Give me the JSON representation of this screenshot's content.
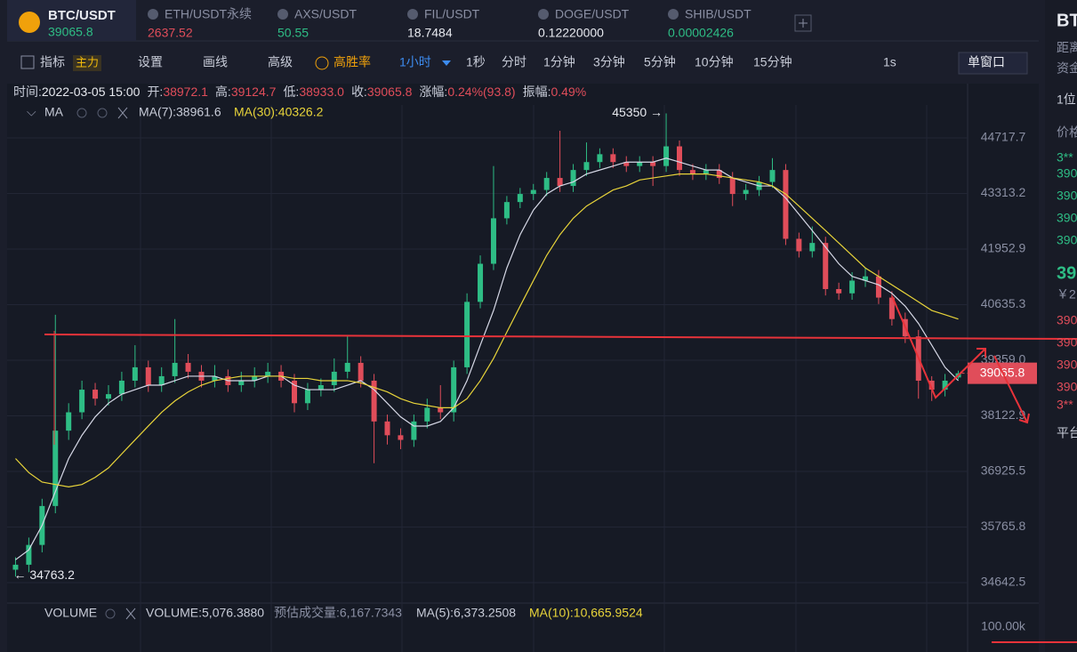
{
  "tabs": [
    {
      "name": "BTC/USDT",
      "price": "39065.8"
    },
    {
      "name": "ETH/USDT永续",
      "price": "2637.52"
    },
    {
      "name": "AXS/USDT",
      "price": "50.55"
    },
    {
      "name": "FIL/USDT",
      "price": "18.7484"
    },
    {
      "name": "DOGE/USDT",
      "price": "0.12220000"
    },
    {
      "name": "SHIB/USDT",
      "price": "0.00002426"
    }
  ],
  "toolbar": {
    "indicator": "指标",
    "main": "主力",
    "settings": "设置",
    "draw": "画线",
    "advanced": "高级",
    "winrate": "高胜率",
    "interval": "1小时",
    "intervals": [
      "1秒",
      "分时",
      "1分钟",
      "3分钟",
      "5分钟",
      "10分钟",
      "15分钟"
    ],
    "speed": "1s",
    "window": "单窗口"
  },
  "info": [
    {
      "label": "时间:",
      "value": "2022-03-05 15:00"
    },
    {
      "label": "开:",
      "value": "38972.1"
    },
    {
      "label": "高:",
      "value": "39124.7"
    },
    {
      "label": "低:",
      "value": "38933.0"
    },
    {
      "label": "收:",
      "value": "39065.8"
    },
    {
      "label": "涨幅:",
      "value": "0.24%(93.8)"
    },
    {
      "label": "振幅:",
      "value": "0.49%"
    }
  ],
  "ma_header": {
    "name": "MA",
    "ma7": "MA(7):38961.6",
    "ma30": "MA(30):40326.2"
  },
  "volume_header": {
    "name": "VOLUME",
    "volume": "VOLUME:5,076.3880",
    "estimate": "预估成交量:6,167.7343",
    "ma5": "MA(5):6,373.2508",
    "ma10": "MA(10):10,665.9524",
    "axis_label": "100.00k"
  },
  "side": {
    "items": [
      "BT",
      "距离",
      "资金",
      "1位",
      "价格",
      "3**",
      "390",
      "390",
      "390",
      "390",
      "39",
      "￥2",
      "390",
      "390",
      "390",
      "390",
      "3**",
      "平台"
    ]
  },
  "chart_data": {
    "type": "candlestick",
    "log": true,
    "grid": true,
    "up_color": "#2ebd85",
    "down_color": "#e04d5a",
    "ylim": [
      34238,
      45570
    ],
    "yticks": [
      44717.7,
      43313.2,
      41952.9,
      40635.3,
      {
        "value": 39359,
        "label": "39359.0"
      },
      38122.9,
      36925.5,
      35765.8,
      34642.5
    ],
    "high_label": "45350 →",
    "low_label": "← 34763.2",
    "last_price": "39065.8",
    "ohlc": [
      [
        34900,
        35150,
        34763.2,
        35000
      ],
      [
        35000,
        35550,
        34850,
        35400
      ],
      [
        35400,
        36350,
        35250,
        36200
      ],
      [
        36200,
        40400,
        36050,
        37800
      ],
      [
        37800,
        38400,
        37600,
        38200
      ],
      [
        38200,
        38900,
        38050,
        38700
      ],
      [
        38700,
        38850,
        38350,
        38500
      ],
      [
        38500,
        38800,
        38350,
        38600
      ],
      [
        38600,
        39100,
        38450,
        38900
      ],
      [
        38900,
        39700,
        38750,
        39200
      ],
      [
        39200,
        39350,
        38650,
        38800
      ],
      [
        38800,
        39200,
        38650,
        39000
      ],
      [
        39000,
        40300,
        38850,
        39300
      ],
      [
        39300,
        39500,
        38950,
        39100
      ],
      [
        39100,
        39250,
        38750,
        38900
      ],
      [
        38900,
        39250,
        38750,
        39000
      ],
      [
        39000,
        39150,
        38650,
        38800
      ],
      [
        38800,
        39100,
        38650,
        38900
      ],
      [
        38900,
        39200,
        38750,
        39000
      ],
      [
        39000,
        39300,
        38850,
        39100
      ],
      [
        39100,
        39250,
        38750,
        38900
      ],
      [
        38900,
        39050,
        38200,
        38400
      ],
      [
        38400,
        38850,
        38250,
        38700
      ],
      [
        38700,
        38950,
        38550,
        38800
      ],
      [
        38800,
        39400,
        38650,
        39100
      ],
      [
        39100,
        39900,
        38950,
        39300
      ],
      [
        39300,
        39450,
        38750,
        38900
      ],
      [
        38900,
        39050,
        37100,
        38000
      ],
      [
        38000,
        38150,
        37500,
        37700
      ],
      [
        37700,
        37850,
        37400,
        37600
      ],
      [
        37600,
        38150,
        37450,
        38000
      ],
      [
        38000,
        38500,
        37850,
        38300
      ],
      [
        38300,
        38800,
        38050,
        38200
      ],
      [
        38200,
        39350,
        38000,
        39200
      ],
      [
        39200,
        40900,
        39050,
        40700
      ],
      [
        40700,
        41800,
        40550,
        41600
      ],
      [
        41600,
        44000,
        41450,
        42700
      ],
      [
        42700,
        43250,
        42550,
        43100
      ],
      [
        43100,
        43450,
        42950,
        43300
      ],
      [
        43300,
        43550,
        43150,
        43400
      ],
      [
        43400,
        43850,
        43250,
        43700
      ],
      [
        43700,
        44900,
        43350,
        43500
      ],
      [
        43500,
        44050,
        43350,
        43900
      ],
      [
        43900,
        44600,
        43750,
        44100
      ],
      [
        44100,
        44450,
        43950,
        44300
      ],
      [
        44300,
        44450,
        43950,
        44100
      ],
      [
        44100,
        44250,
        43850,
        44000
      ],
      [
        44000,
        44250,
        43850,
        44100
      ],
      [
        44100,
        44250,
        43500,
        44000
      ],
      [
        44000,
        45350,
        43850,
        44500
      ],
      [
        44500,
        44650,
        43750,
        43900
      ],
      [
        43900,
        44050,
        43650,
        43800
      ],
      [
        43800,
        44050,
        43650,
        43900
      ],
      [
        43900,
        44050,
        43550,
        43700
      ],
      [
        43700,
        43850,
        43000,
        43300
      ],
      [
        43300,
        43550,
        43150,
        43400
      ],
      [
        43400,
        43750,
        43250,
        43600
      ],
      [
        43600,
        44200,
        43450,
        43900
      ],
      [
        43900,
        44050,
        42050,
        42200
      ],
      [
        42200,
        42350,
        41750,
        41900
      ],
      [
        41900,
        42500,
        41750,
        42100
      ],
      [
        42100,
        42250,
        40850,
        41000
      ],
      [
        41000,
        41150,
        40750,
        40900
      ],
      [
        40900,
        41400,
        40750,
        41200
      ],
      [
        41200,
        41500,
        41050,
        41300
      ],
      [
        41300,
        41450,
        40650,
        40800
      ],
      [
        40800,
        40950,
        40150,
        40300
      ],
      [
        40300,
        40450,
        39750,
        39900
      ],
      [
        39900,
        40050,
        38500,
        38900
      ],
      [
        38900,
        39000,
        38450,
        38700
      ],
      [
        38700,
        39050,
        38550,
        38900
      ],
      [
        38972.1,
        39124.7,
        38933,
        39065.8
      ]
    ],
    "lines": [
      {
        "color": "#d6d8e6",
        "values": [
          35100,
          35300,
          35800,
          36500,
          37200,
          37700,
          38100,
          38400,
          38600,
          38700,
          38800,
          38800,
          38900,
          39000,
          39000,
          39000,
          38900,
          38900,
          38900,
          39000,
          39000,
          38800,
          38700,
          38700,
          38700,
          38800,
          38900,
          38700,
          38400,
          38100,
          37900,
          37900,
          38000,
          38300,
          38900,
          39700,
          40500,
          41500,
          42300,
          42900,
          43300,
          43500,
          43600,
          43800,
          43900,
          44000,
          44100,
          44100,
          44100,
          44200,
          44100,
          44000,
          43900,
          43900,
          43700,
          43600,
          43500,
          43500,
          43200,
          42800,
          42400,
          42000,
          41600,
          41300,
          41200,
          41100,
          40900,
          40600,
          40200,
          39700,
          39200,
          38900
        ]
      },
      {
        "color": "#e8d43a",
        "values": [
          37200,
          36900,
          36700,
          36650,
          36600,
          36650,
          36800,
          37000,
          37300,
          37600,
          37900,
          38200,
          38450,
          38650,
          38800,
          38900,
          38950,
          39000,
          39000,
          39000,
          39000,
          38950,
          38950,
          38900,
          38900,
          38900,
          38850,
          38750,
          38650,
          38500,
          38400,
          38350,
          38300,
          38300,
          38500,
          38900,
          39400,
          40000,
          40600,
          41200,
          41800,
          42300,
          42700,
          43000,
          43200,
          43400,
          43500,
          43650,
          43700,
          43750,
          43800,
          43800,
          43800,
          43750,
          43700,
          43650,
          43600,
          43500,
          43300,
          43000,
          42700,
          42400,
          42100,
          41800,
          41500,
          41300,
          41100,
          40900,
          40700,
          40500,
          40400,
          40300
        ]
      }
    ]
  }
}
